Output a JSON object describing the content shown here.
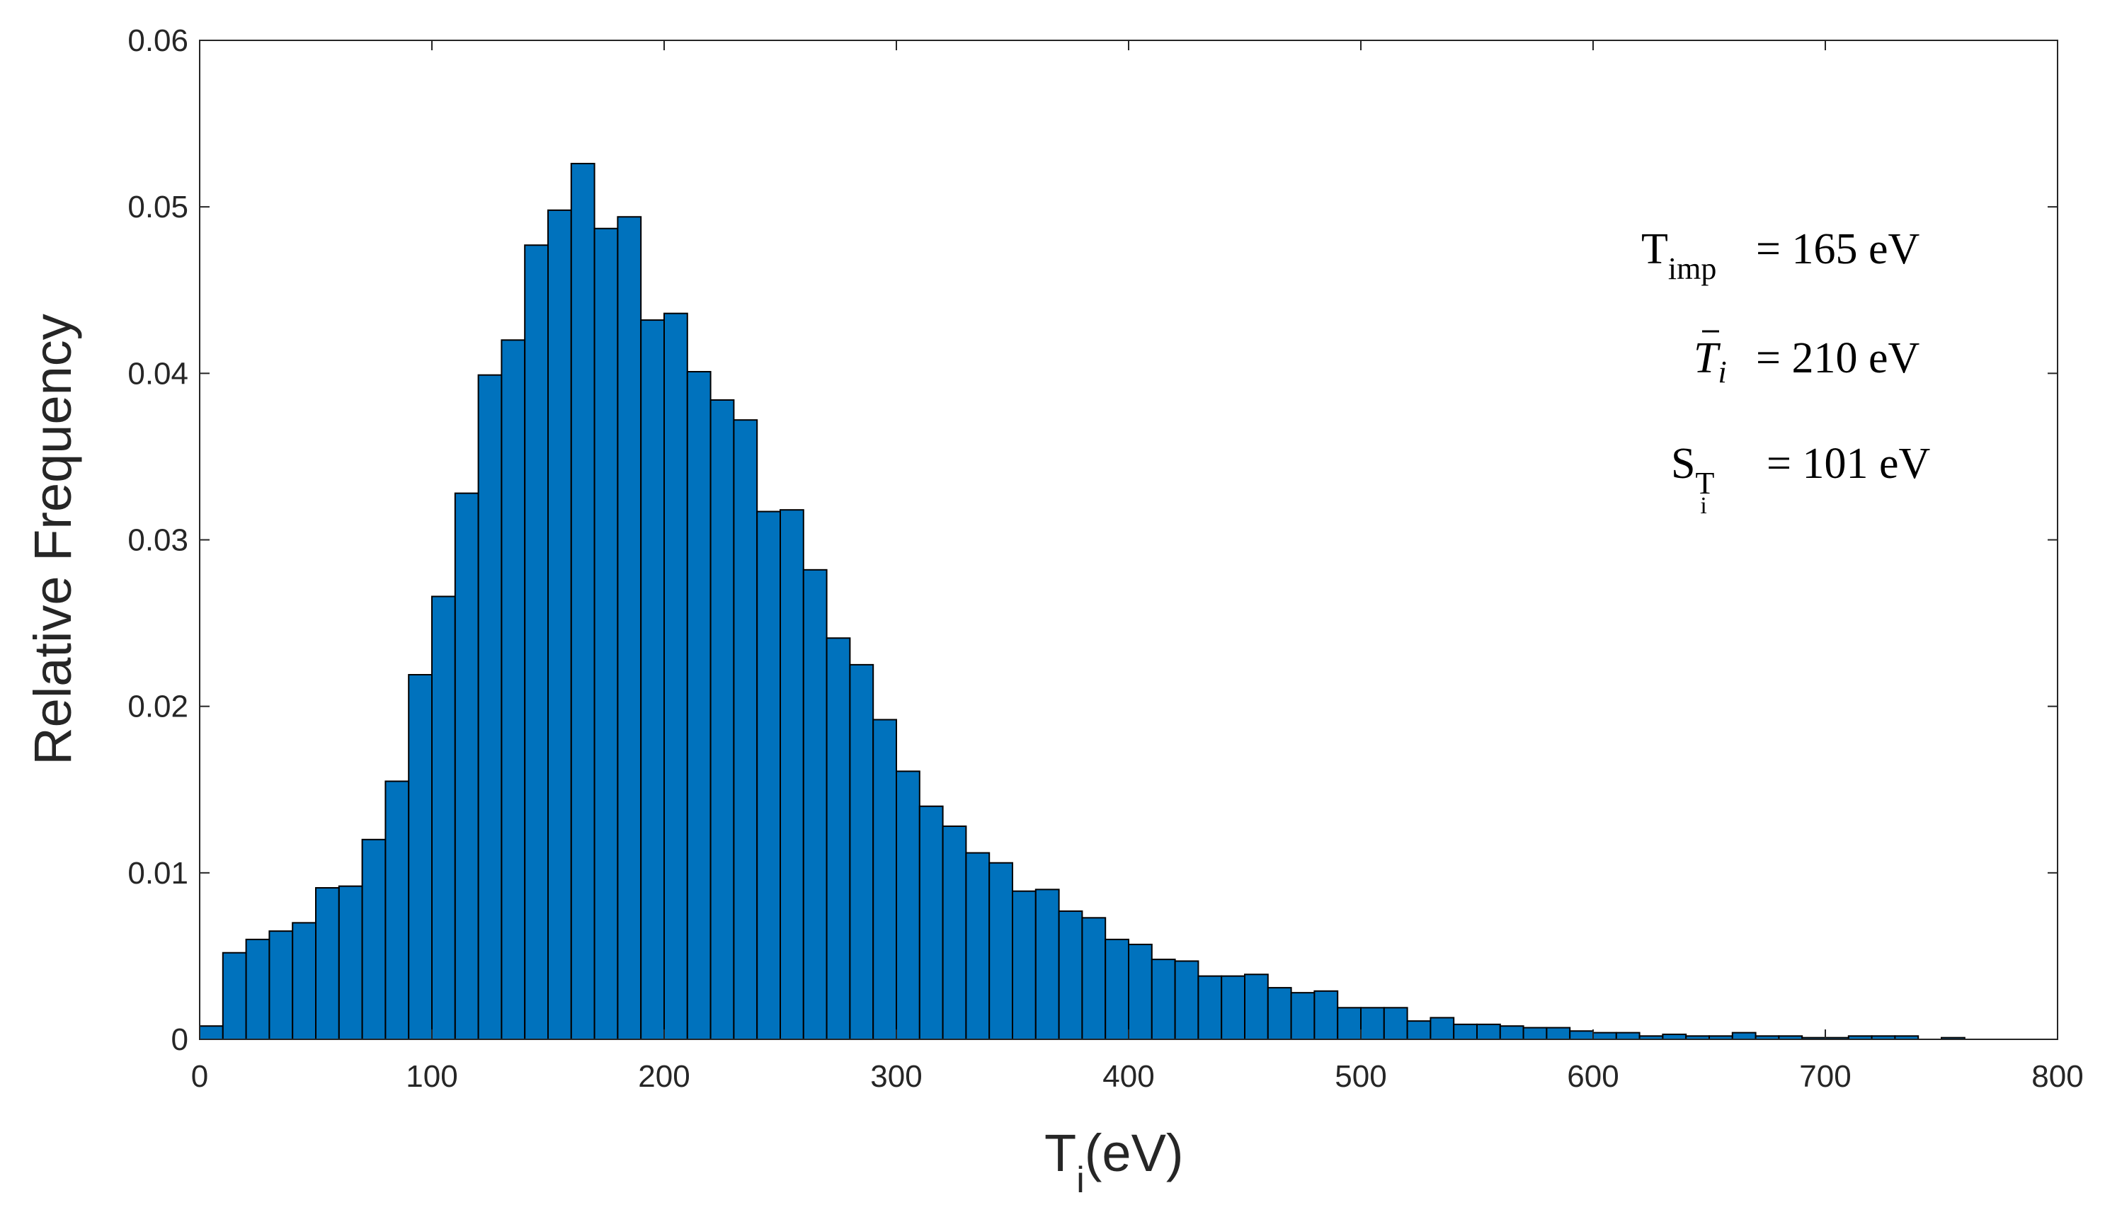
{
  "chart_data": {
    "type": "bar",
    "title": "",
    "xlabel": {
      "main": "T",
      "sub": "i",
      "rest": "(eV)"
    },
    "ylabel": "Relative Frequency",
    "xlim": [
      0,
      800
    ],
    "ylim": [
      0,
      0.06
    ],
    "xticks": [
      0,
      100,
      200,
      300,
      400,
      500,
      600,
      700,
      800
    ],
    "xtick_labels": [
      "0",
      "100",
      "200",
      "300",
      "400",
      "500",
      "600",
      "700",
      "800"
    ],
    "yticks": [
      0,
      0.01,
      0.02,
      0.03,
      0.04,
      0.05,
      0.06
    ],
    "ytick_labels": [
      "0",
      "0.01",
      "0.02",
      "0.03",
      "0.04",
      "0.05",
      "0.06"
    ],
    "grid": false,
    "bin_width": 10,
    "bin_edges_start": 0,
    "bar_color": "#0072BD",
    "values": [
      0.0008,
      0.0052,
      0.006,
      0.0065,
      0.007,
      0.0091,
      0.0092,
      0.012,
      0.0155,
      0.0219,
      0.0266,
      0.0328,
      0.0399,
      0.042,
      0.0477,
      0.0498,
      0.0526,
      0.0487,
      0.0494,
      0.0432,
      0.0436,
      0.0401,
      0.0384,
      0.0372,
      0.0317,
      0.0318,
      0.0282,
      0.0241,
      0.0225,
      0.0192,
      0.0161,
      0.014,
      0.0128,
      0.0112,
      0.0106,
      0.0089,
      0.009,
      0.0077,
      0.0073,
      0.006,
      0.0057,
      0.0048,
      0.0047,
      0.0038,
      0.0038,
      0.0039,
      0.0031,
      0.0028,
      0.0029,
      0.0019,
      0.0019,
      0.0019,
      0.0011,
      0.0013,
      0.0009,
      0.0009,
      0.0008,
      0.0007,
      0.0007,
      0.0005,
      0.0004,
      0.0004,
      0.0002,
      0.0003,
      0.0002,
      0.0002,
      0.0004,
      0.0002,
      0.0002,
      0.0001,
      0.0001,
      0.0002,
      0.0002,
      0.0002,
      0,
      0.0001,
      0,
      0,
      0,
      0
    ],
    "annotations": [
      {
        "label": "T",
        "sub": "imp",
        "text": "=  165 eV"
      },
      {
        "label": "T",
        "sub": "i",
        "text": "=  210 eV"
      },
      {
        "label": "S",
        "sub": "T",
        "subsub": "i",
        "text": "=  101 eV"
      }
    ]
  }
}
